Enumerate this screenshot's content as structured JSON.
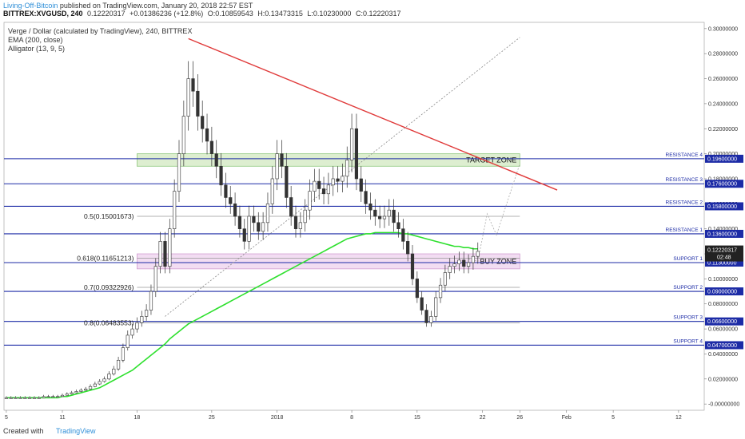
{
  "header": {
    "author": "Living-Off-Bitcoin",
    "published": "published on TradingView.com, January 20, 2018 22:57 EST",
    "symbol": "BITTREX:XVGUSD, 240",
    "last": "0.12220317",
    "change": "+0.01386236 (+12.8%)",
    "open": "O:0.10859543",
    "high": "H:0.13473315",
    "low": "L:0.10230000",
    "close": "C:0.12220317"
  },
  "legend": {
    "title": "Verge / Dollar (calculated by TradingView), 240, BITTREX",
    "ema": "EMA (200, close)",
    "alligator": "Alligator (13, 9, 5)"
  },
  "colors": {
    "level_line": "#1c2ba6",
    "trendline": "#e03a3a",
    "ema": "#2ee02e",
    "candle": "#333333",
    "target_zone": "#d8ecc8",
    "buy_zone": "#f0d8f0",
    "axis_badge": "#1c2ba6"
  },
  "footer": {
    "created": "Created with",
    "brand": "TradingView"
  },
  "chart_data": {
    "type": "candlestick",
    "ylim": [
      -0.005,
      0.305
    ],
    "y_ticks": [
      "0.30000000",
      "0.28000000",
      "0.26000000",
      "0.24000000",
      "0.22000000",
      "0.20000000",
      "0.18000000",
      "0.16000000",
      "0.14000000",
      "0.12000000",
      "0.10000000",
      "0.08000000",
      "0.06000000",
      "0.04000000",
      "0.02000000",
      "-0.00000000"
    ],
    "y_tick_values": [
      0.3,
      0.28,
      0.26,
      0.24,
      0.22,
      0.2,
      0.18,
      0.16,
      0.14,
      0.12,
      0.1,
      0.08,
      0.06,
      0.04,
      0.02,
      0.0
    ],
    "x_ticks": [
      "5",
      "11",
      "18",
      "25",
      "2018",
      "8",
      "15",
      "22",
      "26",
      "Feb",
      "5",
      "12"
    ],
    "x_tick_index": [
      0,
      12,
      28,
      44,
      58,
      74,
      88,
      102,
      110,
      120,
      130,
      144
    ],
    "current_price": {
      "label": "0.12220317",
      "value": 0.12220317,
      "timer": "02:48"
    },
    "levels": [
      {
        "name": "RESISTANCE 4",
        "value": 0.196,
        "label": "0.19600000"
      },
      {
        "name": "RESISTANCE 3",
        "value": 0.176,
        "label": "0.17600000"
      },
      {
        "name": "RESISTANCE 2",
        "value": 0.158,
        "label": "0.15800000"
      },
      {
        "name": "RESISTANCE 1",
        "value": 0.136,
        "label": "0.13600000"
      },
      {
        "name": "SUPPORT 1",
        "value": 0.113,
        "label": "0.11300000"
      },
      {
        "name": "SUPPORT 2",
        "value": 0.09,
        "label": "0.09000000"
      },
      {
        "name": "SUPPORT 3",
        "value": 0.066,
        "label": "0.06600000"
      },
      {
        "name": "SUPPORT 4",
        "value": 0.047,
        "label": "0.04700000"
      }
    ],
    "fib_levels": [
      {
        "label": "0.5(0.15001673)",
        "value": 0.15001673
      },
      {
        "label": "0.618(0.11651213)",
        "value": 0.11651213
      },
      {
        "label": "0.7(0.09322926)",
        "value": 0.09322926
      },
      {
        "label": "0.8(0.06483553)",
        "value": 0.06483553
      }
    ],
    "zones": [
      {
        "label": "TARGET ZONE",
        "y_top": 0.2,
        "y_bottom": 0.19,
        "x_start": 28,
        "x_end": 110
      },
      {
        "label": "BUY ZONE",
        "y_top": 0.12,
        "y_bottom": 0.108,
        "x_start": 28,
        "x_end": 110
      }
    ],
    "trendline": {
      "from": [
        39,
        0.292
      ],
      "to": [
        118,
        0.171
      ]
    },
    "dotted_line": {
      "from": [
        34,
        0.07
      ],
      "to": [
        110,
        0.293
      ]
    },
    "projection": [
      [
        99,
        0.116
      ],
      [
        101,
        0.114
      ],
      [
        103,
        0.152
      ],
      [
        105,
        0.135
      ],
      [
        107,
        0.158
      ],
      [
        110,
        0.192
      ]
    ],
    "closes": [
      0.005,
      0.005,
      0.005,
      0.005,
      0.005,
      0.005,
      0.005,
      0.005,
      0.006,
      0.006,
      0.006,
      0.006,
      0.007,
      0.008,
      0.009,
      0.01,
      0.011,
      0.012,
      0.014,
      0.016,
      0.018,
      0.02,
      0.024,
      0.028,
      0.035,
      0.045,
      0.055,
      0.06,
      0.065,
      0.07,
      0.075,
      0.09,
      0.11,
      0.13,
      0.11,
      0.14,
      0.17,
      0.2,
      0.23,
      0.26,
      0.25,
      0.23,
      0.22,
      0.21,
      0.2,
      0.19,
      0.175,
      0.165,
      0.16,
      0.15,
      0.14,
      0.13,
      0.15,
      0.145,
      0.138,
      0.145,
      0.16,
      0.18,
      0.2,
      0.19,
      0.165,
      0.15,
      0.14,
      0.145,
      0.155,
      0.17,
      0.178,
      0.172,
      0.168,
      0.175,
      0.18,
      0.178,
      0.182,
      0.195,
      0.22,
      0.18,
      0.17,
      0.16,
      0.155,
      0.15,
      0.148,
      0.15,
      0.155,
      0.145,
      0.14,
      0.13,
      0.12,
      0.1,
      0.085,
      0.075,
      0.065,
      0.07,
      0.085,
      0.095,
      0.105,
      0.11,
      0.112,
      0.115,
      0.11,
      0.113,
      0.118,
      0.122
    ],
    "ema200": [
      0.005,
      0.005,
      0.005,
      0.005,
      0.005,
      0.005,
      0.005,
      0.005,
      0.005,
      0.005,
      0.005,
      0.005,
      0.006,
      0.006,
      0.007,
      0.008,
      0.009,
      0.01,
      0.011,
      0.012,
      0.013,
      0.015,
      0.017,
      0.019,
      0.021,
      0.023,
      0.025,
      0.027,
      0.03,
      0.033,
      0.036,
      0.039,
      0.042,
      0.045,
      0.048,
      0.052,
      0.055,
      0.058,
      0.061,
      0.064,
      0.066,
      0.068,
      0.07,
      0.072,
      0.074,
      0.076,
      0.078,
      0.08,
      0.082,
      0.084,
      0.086,
      0.088,
      0.09,
      0.092,
      0.094,
      0.096,
      0.098,
      0.1,
      0.102,
      0.104,
      0.106,
      0.108,
      0.11,
      0.112,
      0.114,
      0.116,
      0.118,
      0.12,
      0.122,
      0.124,
      0.126,
      0.128,
      0.13,
      0.132,
      0.133,
      0.134,
      0.135,
      0.136,
      0.136,
      0.137,
      0.137,
      0.137,
      0.137,
      0.137,
      0.137,
      0.136,
      0.136,
      0.135,
      0.134,
      0.133,
      0.132,
      0.131,
      0.13,
      0.129,
      0.128,
      0.127,
      0.126,
      0.126,
      0.125,
      0.125,
      0.124,
      0.124
    ]
  }
}
